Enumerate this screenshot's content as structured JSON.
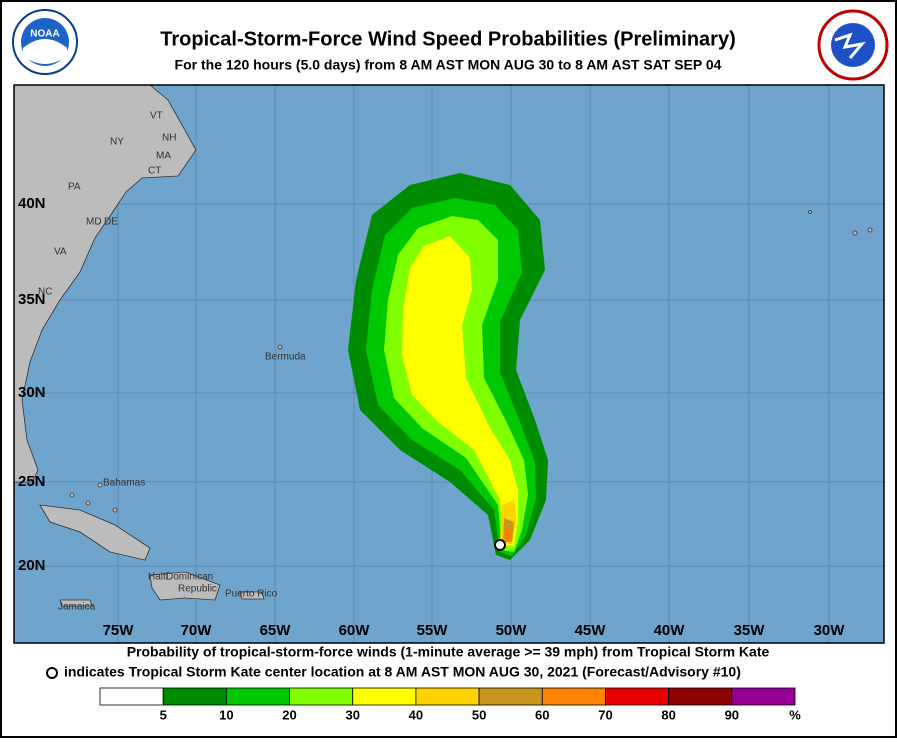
{
  "header": {
    "title": "Tropical-Storm-Force Wind Speed Probabilities (Preliminary)",
    "subtitle": "For the 120 hours (5.0 days) from 8 AM AST MON AUG 30 to 8 AM AST SAT SEP 04",
    "logo_left": "NOAA"
  },
  "map": {
    "lon_labels": [
      "75W",
      "70W",
      "65W",
      "60W",
      "55W",
      "50W",
      "45W",
      "40W",
      "35W",
      "30W"
    ],
    "lat_labels": [
      "40N",
      "35N",
      "30N",
      "25N",
      "20N"
    ],
    "places": [
      "NY",
      "VT",
      "NH",
      "MA",
      "CT",
      "PA",
      "MD",
      "DE",
      "VA",
      "NC",
      "Bermuda",
      "Bahamas",
      "Haiti",
      "Dominican",
      "Republic",
      "Puerto Rico",
      "Jamaica"
    ]
  },
  "footer": {
    "line1": "Probability of tropical-storm-force winds (1-minute average >= 39 mph) from Tropical Storm Kate",
    "line2": "indicates Tropical Storm Kate center location at 8 AM AST MON AUG 30, 2021 (Forecast/Advisory #10)"
  },
  "legend": {
    "colors": [
      "#ffffff",
      "#008c00",
      "#00c800",
      "#7fff00",
      "#ffff00",
      "#ffd200",
      "#c8961e",
      "#ff8200",
      "#e60000",
      "#8c0000",
      "#960096"
    ],
    "labels": [
      "5",
      "10",
      "20",
      "30",
      "40",
      "50",
      "60",
      "70",
      "80",
      "90",
      "%"
    ]
  }
}
